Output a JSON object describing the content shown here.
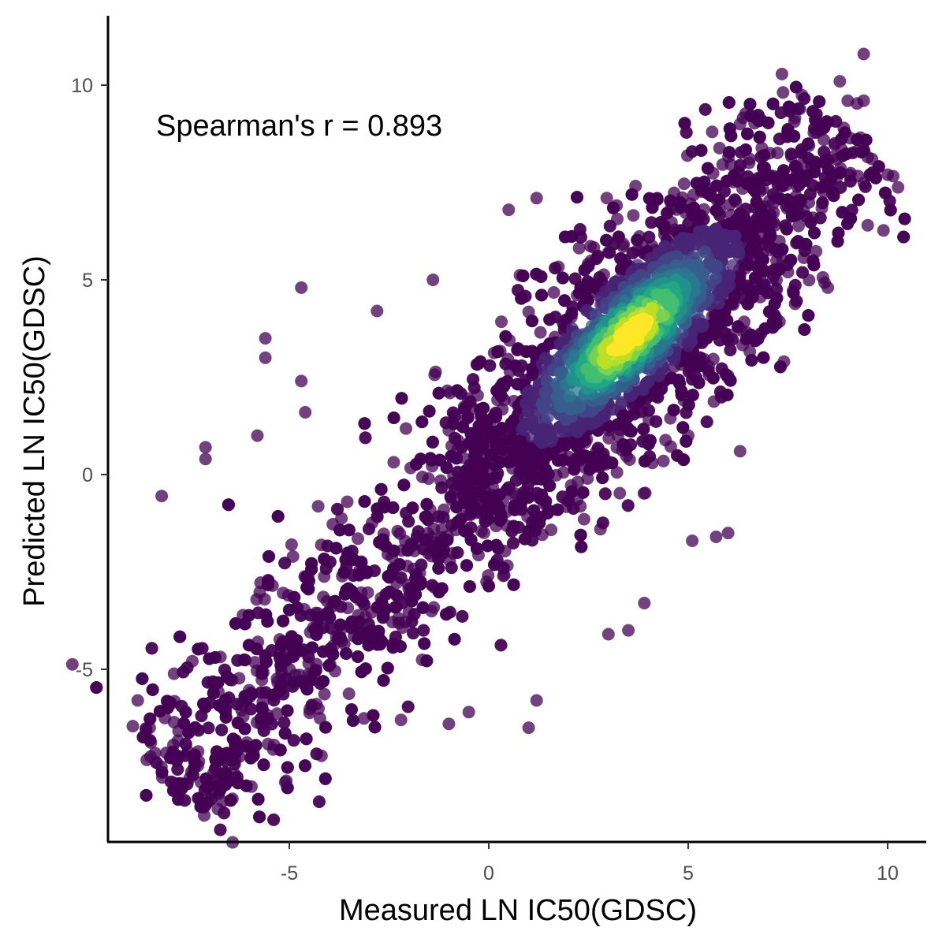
{
  "chart_data": {
    "type": "scatter",
    "title": "",
    "xlabel": "Measured LN IC50(GDSC)",
    "ylabel": "Predicted LN IC50(GDSC)",
    "xlim": [
      -9.3,
      11.0
    ],
    "ylim": [
      -9.0,
      11.7
    ],
    "xticks": [
      -5,
      0,
      5,
      10
    ],
    "yticks": [
      -5,
      0,
      5,
      10
    ],
    "xtick_labels": [
      "-5",
      "0",
      "5",
      "10"
    ],
    "ytick_labels": [
      "-5",
      "0",
      "5",
      "10"
    ],
    "grid": false,
    "annotation": "Spearman's r = 0.893",
    "color_scale": "viridis point density",
    "colors": {
      "low_density": "#440154",
      "mid_density": "#31688e",
      "high_density_1": "#35b779",
      "high_density_2": "#fde725"
    },
    "point_opacity": 0.75,
    "series_description": "dense cloud of points along identity line, densest near x=3..4.5, y=3.5..4.5",
    "outliers": [
      {
        "x": 9.4,
        "y": 10.8
      },
      {
        "x": 8.8,
        "y": 10.1
      },
      {
        "x": 9.4,
        "y": 9.6
      },
      {
        "x": 10.0,
        "y": 7.7
      },
      {
        "x": -8.2,
        "y": -0.55
      },
      {
        "x": -7.1,
        "y": 0.7
      },
      {
        "x": -7.1,
        "y": 0.4
      },
      {
        "x": -5.6,
        "y": 3.5
      },
      {
        "x": -5.6,
        "y": 3.0
      },
      {
        "x": -4.7,
        "y": 4.8
      },
      {
        "x": -4.7,
        "y": 2.4
      },
      {
        "x": -8.8,
        "y": -5.8
      },
      {
        "x": -8.5,
        "y": -6.5
      },
      {
        "x": -7.5,
        "y": -7.8
      },
      {
        "x": -7.1,
        "y": -8.5
      },
      {
        "x": -5.1,
        "y": -7.9
      },
      {
        "x": 1.0,
        "y": -6.5
      },
      {
        "x": 1.2,
        "y": -5.8
      },
      {
        "x": 2.8,
        "y": -1.4
      },
      {
        "x": 5.1,
        "y": -1.7
      },
      {
        "x": 5.7,
        "y": -1.6
      },
      {
        "x": 6.0,
        "y": -1.5
      },
      {
        "x": 3.0,
        "y": -4.1
      },
      {
        "x": 3.9,
        "y": -3.3
      },
      {
        "x": 3.5,
        "y": -4.0
      },
      {
        "x": -2.2,
        "y": -6.3
      },
      {
        "x": -0.5,
        "y": -6.1
      },
      {
        "x": -1.0,
        "y": -6.4
      },
      {
        "x": 7.4,
        "y": 2.9
      },
      {
        "x": 8.5,
        "y": 4.8
      },
      {
        "x": 9.5,
        "y": 6.4
      },
      {
        "x": 9.0,
        "y": 9.6
      },
      {
        "x": 6.3,
        "y": 9.0
      },
      {
        "x": 5.6,
        "y": 8.8
      },
      {
        "x": 1.2,
        "y": 7.1
      },
      {
        "x": 0.5,
        "y": 6.8
      },
      {
        "x": -1.4,
        "y": 5.0
      },
      {
        "x": -2.8,
        "y": 4.2
      },
      {
        "x": -4.6,
        "y": 1.6
      },
      {
        "x": -5.8,
        "y": 1.0
      },
      {
        "x": 5.0,
        "y": 1.0
      },
      {
        "x": 6.3,
        "y": 0.6
      },
      {
        "x": 4.1,
        "y": 0.3
      },
      {
        "x": 7.5,
        "y": 5.2
      },
      {
        "x": 8.4,
        "y": 8.6
      }
    ]
  }
}
